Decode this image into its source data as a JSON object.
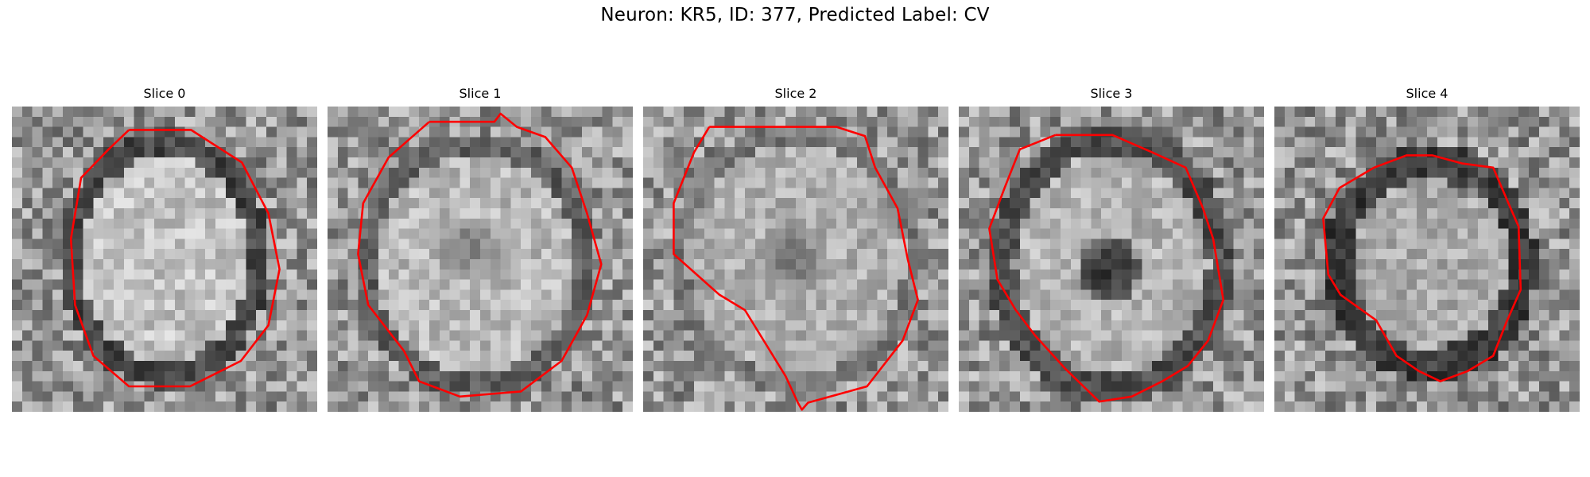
{
  "figure": {
    "title": "Neuron: KR5, ID: 377, Predicted Label: CV"
  },
  "panels": [
    {
      "title": "Slice 0"
    },
    {
      "title": "Slice 1"
    },
    {
      "title": "Slice 2"
    },
    {
      "title": "Slice 3"
    },
    {
      "title": "Slice 4"
    }
  ],
  "colors": {
    "contour": "#ff0000",
    "background": "#ffffff"
  },
  "image": {
    "grid_cells": 30,
    "colormap": "grayscale"
  }
}
